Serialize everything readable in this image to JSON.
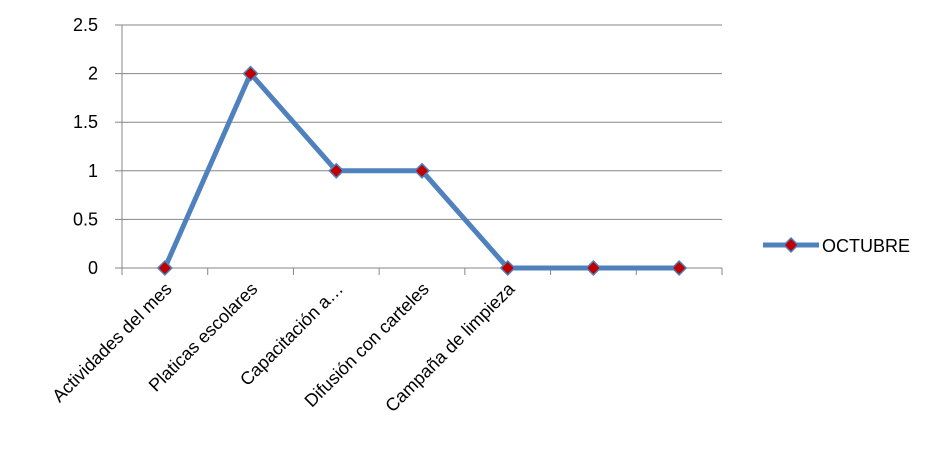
{
  "chart_data": {
    "type": "line",
    "title": "",
    "xlabel": "",
    "ylabel": "",
    "categories": [
      "Actividades del mes",
      "Platicas escolares",
      "Capacitación a…",
      "Difusión con carteles",
      "Campaña de limpieza",
      "",
      ""
    ],
    "y_ticks": [
      "0",
      "0.5",
      "1",
      "1.5",
      "2",
      "2.5"
    ],
    "ylim": [
      0,
      2.5
    ],
    "grid": true,
    "legend_position": "right",
    "series": [
      {
        "name": "OCTUBRE",
        "values": [
          0,
          2,
          1,
          1,
          0,
          0,
          0
        ],
        "line_color": "#4F81BD",
        "marker": "diamond",
        "marker_color": "#C00000"
      }
    ]
  }
}
